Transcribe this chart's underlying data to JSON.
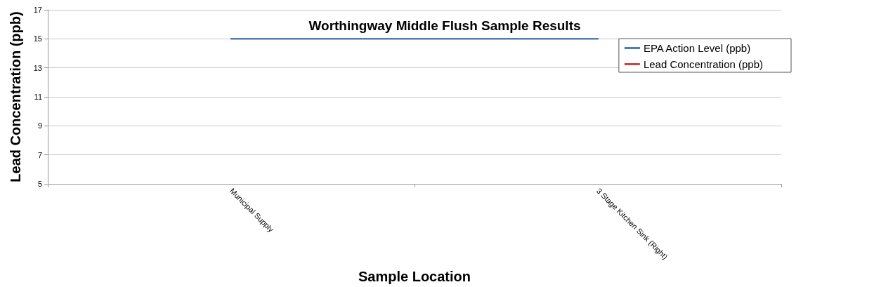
{
  "chart_data": {
    "type": "line",
    "title": "Worthingway Middle Flush Sample Results",
    "xlabel": "Sample Location",
    "ylabel": "Lead Concentration (ppb)",
    "categories": [
      "Municipal Supply",
      "3 Stage Kitchen Sink (Right)"
    ],
    "series": [
      {
        "name": "EPA Action Level (ppb)",
        "color": "#4a7ebb",
        "values": [
          15,
          15
        ]
      },
      {
        "name": "Lead Concentration (ppb)",
        "color": "#be4b48",
        "values": [
          null,
          null
        ]
      }
    ],
    "ylim": [
      5,
      17
    ],
    "yticks": [
      5,
      7,
      9,
      11,
      13,
      15,
      17
    ],
    "grid": "y",
    "legend": "top right",
    "marker": "none",
    "line_style": "solid"
  }
}
